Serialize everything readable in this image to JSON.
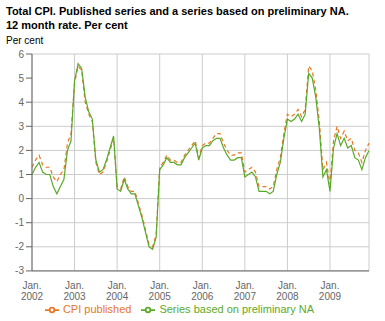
{
  "chart_data": {
    "type": "line",
    "title": "Total CPI. Published series and a series based on preliminary NA.",
    "subtitle": "12 month rate. Per cent",
    "ylabel": "Per cent",
    "categories": [
      "Jan.\n2002",
      null,
      null,
      null,
      null,
      null,
      null,
      null,
      null,
      null,
      null,
      null,
      "Jan.\n2003",
      null,
      null,
      null,
      null,
      null,
      null,
      null,
      null,
      null,
      null,
      null,
      "Jan.\n2004",
      null,
      null,
      null,
      null,
      null,
      null,
      null,
      null,
      null,
      null,
      null,
      "Jan.\n2005",
      null,
      null,
      null,
      null,
      null,
      null,
      null,
      null,
      null,
      null,
      null,
      "Jan.\n2006",
      null,
      null,
      null,
      null,
      null,
      null,
      null,
      null,
      null,
      null,
      null,
      "Jan.\n2007",
      null,
      null,
      null,
      null,
      null,
      null,
      null,
      null,
      null,
      null,
      null,
      "Jan.\n2008",
      null,
      null,
      null,
      null,
      null,
      null,
      null,
      null,
      null,
      null,
      null,
      "Jan.\n2009",
      null,
      null,
      null,
      null,
      null,
      null,
      null,
      null,
      null,
      null,
      null
    ],
    "series": [
      {
        "name": "CPI published",
        "color": "#e87722",
        "line_style": "dashed",
        "values": [
          1.3,
          1.6,
          1.8,
          1.4,
          1.3,
          1.3,
          0.9,
          0.7,
          1.0,
          1.2,
          2.3,
          2.7,
          4.8,
          5.5,
          5.3,
          4.0,
          3.5,
          3.2,
          1.5,
          1.0,
          1.1,
          1.5,
          2.0,
          2.5,
          0.5,
          0.4,
          0.9,
          0.5,
          0.3,
          0.3,
          -0.2,
          -0.7,
          -1.3,
          -1.9,
          -2.0,
          -1.5,
          1.3,
          1.5,
          1.8,
          1.6,
          1.6,
          1.5,
          1.5,
          1.8,
          2.0,
          2.2,
          2.4,
          1.7,
          2.2,
          2.3,
          2.3,
          2.5,
          2.7,
          2.7,
          2.3,
          2.0,
          1.8,
          1.8,
          1.9,
          1.9,
          1.1,
          1.2,
          1.3,
          1.1,
          0.5,
          0.5,
          0.5,
          0.4,
          0.5,
          1.2,
          1.7,
          2.7,
          3.5,
          3.4,
          3.5,
          3.7,
          3.4,
          3.7,
          5.5,
          5.3,
          4.5,
          3.2,
          1.2,
          1.5,
          0.6,
          2.4,
          3.0,
          2.5,
          2.8,
          2.4,
          2.5,
          2.0,
          1.9,
          1.5,
          2.0,
          2.3
        ]
      },
      {
        "name": "Series based on preliminary NA",
        "color": "#5aaa28",
        "line_style": "solid",
        "values": [
          1.0,
          1.3,
          1.5,
          1.1,
          1.0,
          1.0,
          0.5,
          0.2,
          0.5,
          0.8,
          2.0,
          2.4,
          4.9,
          5.6,
          5.4,
          4.2,
          3.6,
          3.3,
          1.6,
          1.1,
          1.2,
          1.6,
          2.1,
          2.6,
          0.4,
          0.3,
          0.8,
          0.4,
          0.2,
          0.2,
          -0.3,
          -0.8,
          -1.4,
          -2.0,
          -2.1,
          -1.6,
          1.2,
          1.4,
          1.7,
          1.5,
          1.5,
          1.4,
          1.4,
          1.7,
          1.9,
          2.1,
          2.3,
          1.6,
          2.1,
          2.2,
          2.2,
          2.4,
          2.5,
          2.5,
          2.1,
          1.8,
          1.6,
          1.6,
          1.7,
          1.7,
          0.9,
          1.0,
          1.1,
          0.9,
          0.3,
          0.3,
          0.3,
          0.2,
          0.3,
          1.0,
          1.5,
          2.5,
          3.3,
          3.2,
          3.3,
          3.5,
          3.2,
          3.5,
          5.2,
          5.0,
          4.2,
          2.9,
          0.9,
          1.2,
          0.3,
          2.1,
          2.7,
          2.2,
          2.5,
          2.1,
          2.2,
          1.7,
          1.6,
          1.2,
          1.7,
          2.0
        ]
      }
    ],
    "ylim": [
      -3,
      6
    ],
    "yticks": [
      -3,
      -2,
      -1,
      0,
      1,
      2,
      3,
      4,
      5,
      6
    ],
    "grid": true,
    "legend": "bottom"
  }
}
